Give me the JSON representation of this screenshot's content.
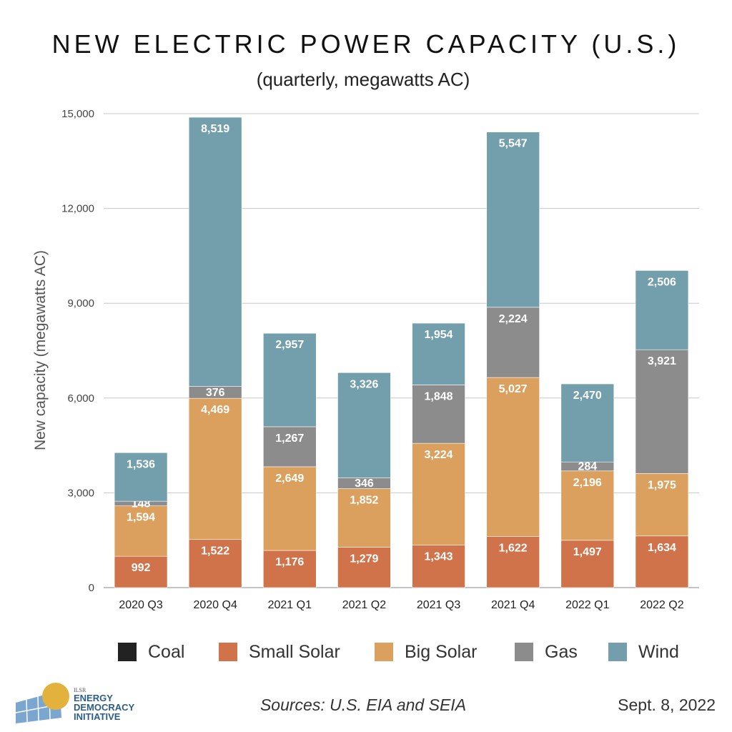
{
  "chart_data": {
    "type": "bar",
    "stacked": true,
    "title": "NEW ELECTRIC POWER CAPACITY (U.S.)",
    "subtitle": "(quarterly, megawatts AC)",
    "xlabel": "",
    "ylabel": "New capacity (megawatts AC)",
    "ylim": [
      0,
      15000
    ],
    "yticks": [
      0,
      3000,
      6000,
      9000,
      12000,
      15000
    ],
    "ytick_labels": [
      "0",
      "3,000",
      "6,000",
      "9,000",
      "12,000",
      "15,000"
    ],
    "grid": true,
    "categories": [
      "2020 Q3",
      "2020 Q4",
      "2021 Q1",
      "2021 Q2",
      "2021 Q3",
      "2021 Q4",
      "2022 Q1",
      "2022 Q2"
    ],
    "series": [
      {
        "name": "Coal",
        "color": "#222222",
        "values": [
          0,
          0,
          0,
          0,
          0,
          0,
          0,
          0
        ],
        "labels": [
          "",
          "",
          "",
          "",
          "",
          "",
          "",
          ""
        ]
      },
      {
        "name": "Small Solar",
        "color": "#d0724a",
        "values": [
          992,
          1522,
          1176,
          1279,
          1343,
          1622,
          1497,
          1634
        ],
        "labels": [
          "992",
          "1,522",
          "1,176",
          "1,279",
          "1,343",
          "1,622",
          "1,497",
          "1,634"
        ]
      },
      {
        "name": "Big Solar",
        "color": "#dba05e",
        "values": [
          1594,
          4469,
          2649,
          1852,
          3224,
          5027,
          2196,
          1975
        ],
        "labels": [
          "1,594",
          "4,469",
          "2,649",
          "1,852",
          "3,224",
          "5,027",
          "2,196",
          "1,975"
        ]
      },
      {
        "name": "Gas",
        "color": "#8c8c8c",
        "values": [
          148,
          376,
          1267,
          346,
          1848,
          2224,
          284,
          3921
        ],
        "labels": [
          "148",
          "376",
          "1,267",
          "346",
          "1,848",
          "2,224",
          "284",
          "3,921"
        ]
      },
      {
        "name": "Wind",
        "color": "#729fab",
        "values": [
          1536,
          8519,
          2957,
          3326,
          1954,
          5547,
          2470,
          2506
        ],
        "labels": [
          "1,536",
          "8,519",
          "2,957",
          "3,326",
          "1,954",
          "5,547",
          "2,470",
          "2,506"
        ]
      }
    ],
    "legend": {
      "placement": "bottom",
      "entries": [
        "Coal",
        "Small Solar",
        "Big Solar",
        "Gas",
        "Wind"
      ]
    }
  },
  "footer": {
    "sources": "Sources: U.S. EIA and SEIA",
    "date": "Sept. 8, 2022"
  },
  "logo": {
    "small_text": "ILSR",
    "line1": "ENERGY",
    "line2": "DEMOCRACY",
    "line3": "INITIATIVE",
    "colors": {
      "panel": "#7aa6cf",
      "sun": "#e3b23c",
      "text": "#2b5d87"
    }
  }
}
